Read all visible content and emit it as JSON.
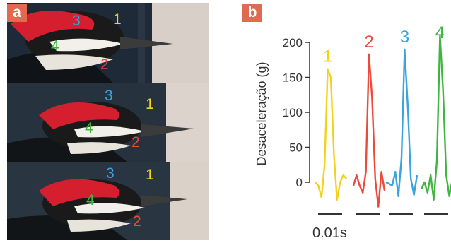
{
  "panels": {
    "a": "a",
    "b": "b"
  },
  "photo_markers": [
    "1",
    "2",
    "3",
    "4"
  ],
  "colors": {
    "1": "#f2d21b",
    "2": "#ec4a3a",
    "3": "#3aa3e0",
    "4": "#3fb53f",
    "badge": "#e06a50"
  },
  "icons": [
    "woodpecker-photo"
  ],
  "chart_data": {
    "type": "line",
    "title": "",
    "xlabel": "",
    "ylabel": "Desaceleração (g)",
    "ylim": [
      0,
      200
    ],
    "yticks": [
      0,
      50,
      100,
      150,
      200
    ],
    "scale_bar_label": "0.01s",
    "grid": false,
    "series": [
      {
        "name": "1",
        "values": [
          0,
          -5,
          -22,
          25,
          162,
          150,
          40,
          -25,
          0,
          10,
          5
        ]
      },
      {
        "name": "2",
        "values": [
          -5,
          10,
          -5,
          -15,
          15,
          183,
          120,
          5,
          -35,
          15,
          -12
        ]
      },
      {
        "name": "3",
        "values": [
          0,
          -2,
          -5,
          15,
          -20,
          35,
          190,
          110,
          5,
          -18,
          10
        ]
      },
      {
        "name": "4",
        "values": [
          -10,
          0,
          -15,
          10,
          -25,
          30,
          210,
          130,
          10,
          -20,
          5
        ]
      }
    ]
  }
}
